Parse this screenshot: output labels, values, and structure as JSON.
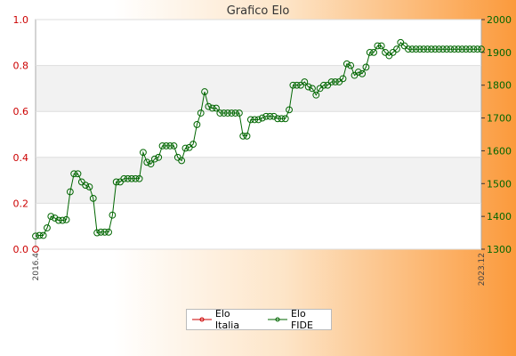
{
  "chart_data": {
    "type": "line",
    "title": "Grafico Elo",
    "y_left": {
      "ylim": [
        0,
        1
      ],
      "ticks": [
        "0.0",
        "0.2",
        "0.4",
        "0.6",
        "0.8",
        "1.0"
      ],
      "color": "#cc0000"
    },
    "y_right": {
      "ylim": [
        1300,
        2000
      ],
      "ticks": [
        "1300",
        "1400",
        "1500",
        "1600",
        "1700",
        "1800",
        "1900",
        "2000"
      ],
      "color": "#006600"
    },
    "x_first": "2016.4",
    "x_last": "2023.12",
    "grid": true,
    "series": [
      {
        "name": "Elo Italia",
        "axis": "left",
        "color": "#cc0000",
        "values": [
          0
        ]
      },
      {
        "name": "Elo FIDE",
        "axis": "right",
        "color": "#006600",
        "values": [
          1340,
          1342,
          1342,
          1365,
          1400,
          1395,
          1388,
          1388,
          1390,
          1475,
          1530,
          1530,
          1505,
          1495,
          1490,
          1455,
          1350,
          1352,
          1352,
          1352,
          1404,
          1505,
          1505,
          1515,
          1515,
          1515,
          1515,
          1515,
          1595,
          1565,
          1560,
          1575,
          1580,
          1615,
          1615,
          1615,
          1615,
          1580,
          1570,
          1608,
          1610,
          1620,
          1680,
          1715,
          1780,
          1735,
          1730,
          1730,
          1715,
          1715,
          1715,
          1715,
          1715,
          1715,
          1645,
          1645,
          1695,
          1695,
          1695,
          1700,
          1705,
          1705,
          1705,
          1698,
          1698,
          1698,
          1725,
          1800,
          1800,
          1800,
          1810,
          1795,
          1790,
          1770,
          1790,
          1800,
          1800,
          1810,
          1810,
          1810,
          1820,
          1865,
          1860,
          1830,
          1840,
          1835,
          1855,
          1900,
          1900,
          1920,
          1920,
          1900,
          1890,
          1900,
          1910,
          1930,
          1920,
          1910,
          1910,
          1910,
          1910,
          1910,
          1910,
          1910,
          1910,
          1910,
          1910,
          1910,
          1910,
          1910,
          1910,
          1910,
          1910,
          1910,
          1910,
          1910,
          1910
        ]
      }
    ]
  }
}
